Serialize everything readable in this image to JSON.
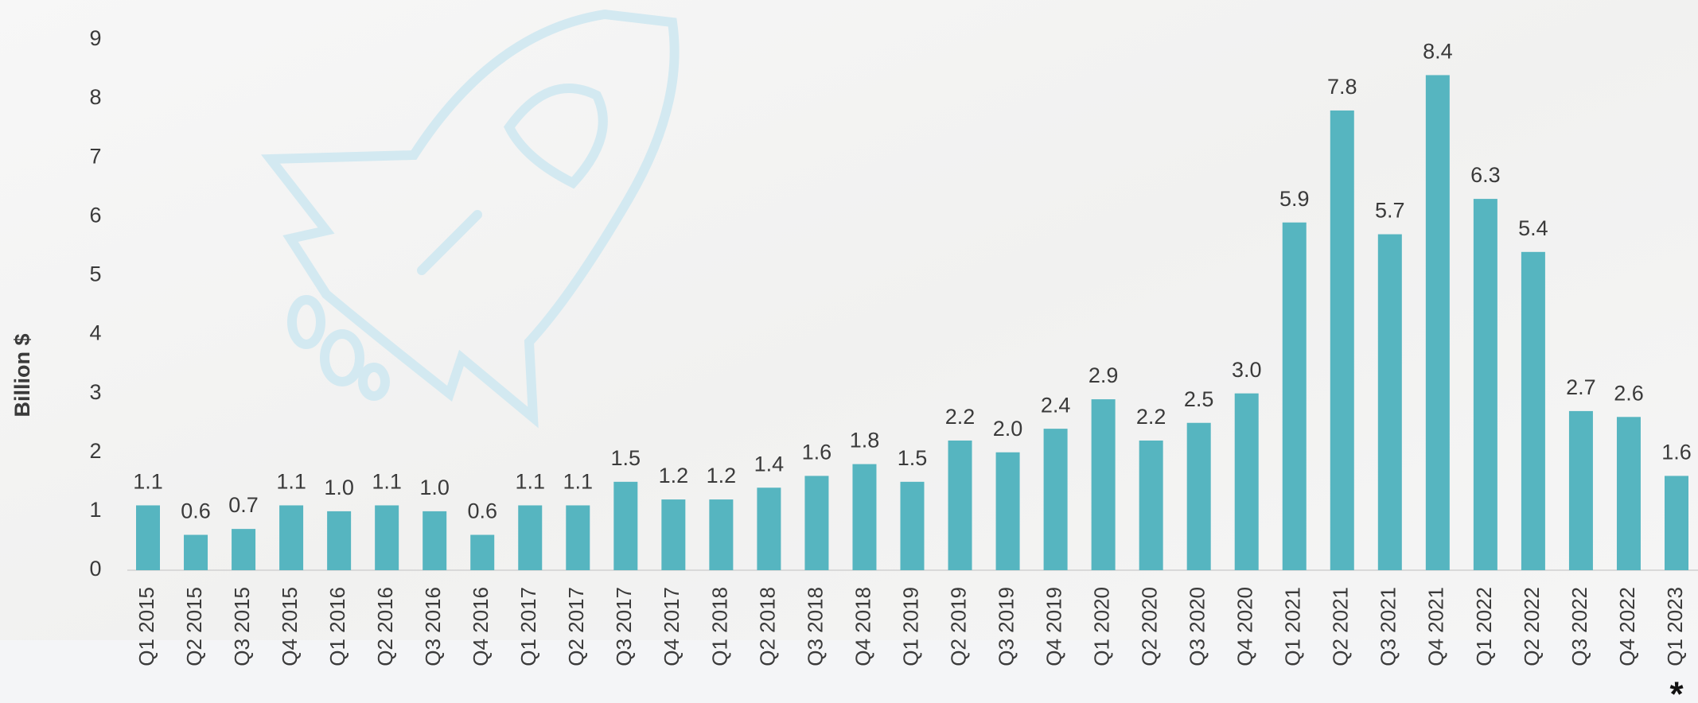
{
  "chart_data": {
    "type": "bar",
    "y_axis_label": "Billion $",
    "categories": [
      "Q1 2015",
      "Q2 2015",
      "Q3 2015",
      "Q4 2015",
      "Q1 2016",
      "Q2 2016",
      "Q3 2016",
      "Q4 2016",
      "Q1 2017",
      "Q2 2017",
      "Q3 2017",
      "Q4 2017",
      "Q1 2018",
      "Q2 2018",
      "Q3 2018",
      "Q4 2018",
      "Q1 2019",
      "Q2 2019",
      "Q3 2019",
      "Q4 2019",
      "Q1 2020",
      "Q2 2020",
      "Q3 2020",
      "Q4 2020",
      "Q1 2021",
      "Q2 2021",
      "Q3 2021",
      "Q4 2021",
      "Q1 2022",
      "Q2 2022",
      "Q3 2022",
      "Q4 2022",
      "Q1 2023"
    ],
    "values": [
      1.1,
      0.6,
      0.7,
      1.1,
      1.0,
      1.1,
      1.0,
      0.6,
      1.1,
      1.1,
      1.5,
      1.2,
      1.2,
      1.4,
      1.6,
      1.8,
      1.5,
      2.2,
      2.0,
      2.4,
      2.9,
      2.2,
      2.5,
      3.0,
      5.9,
      7.8,
      5.7,
      8.4,
      6.3,
      5.4,
      2.7,
      2.6,
      1.6
    ],
    "value_labels": [
      "1.1",
      "0.6",
      "0.7",
      "1.1",
      "1.0",
      "1.1",
      "1.0",
      "0.6",
      "1.1",
      "1.1",
      "1.5",
      "1.2",
      "1.2",
      "1.4",
      "1.6",
      "1.8",
      "1.5",
      "2.2",
      "2.0",
      "2.4",
      "2.9",
      "2.2",
      "2.5",
      "3.0",
      "5.9",
      "7.8",
      "5.7",
      "8.4",
      "6.3",
      "5.4",
      "2.7",
      "2.6",
      "1.6"
    ],
    "color": "#56b5c0",
    "ylim": [
      0,
      9
    ],
    "yticks": [
      0,
      1,
      2,
      3,
      4,
      5,
      6,
      7,
      8,
      9
    ],
    "grid": false,
    "annotation": "*"
  }
}
